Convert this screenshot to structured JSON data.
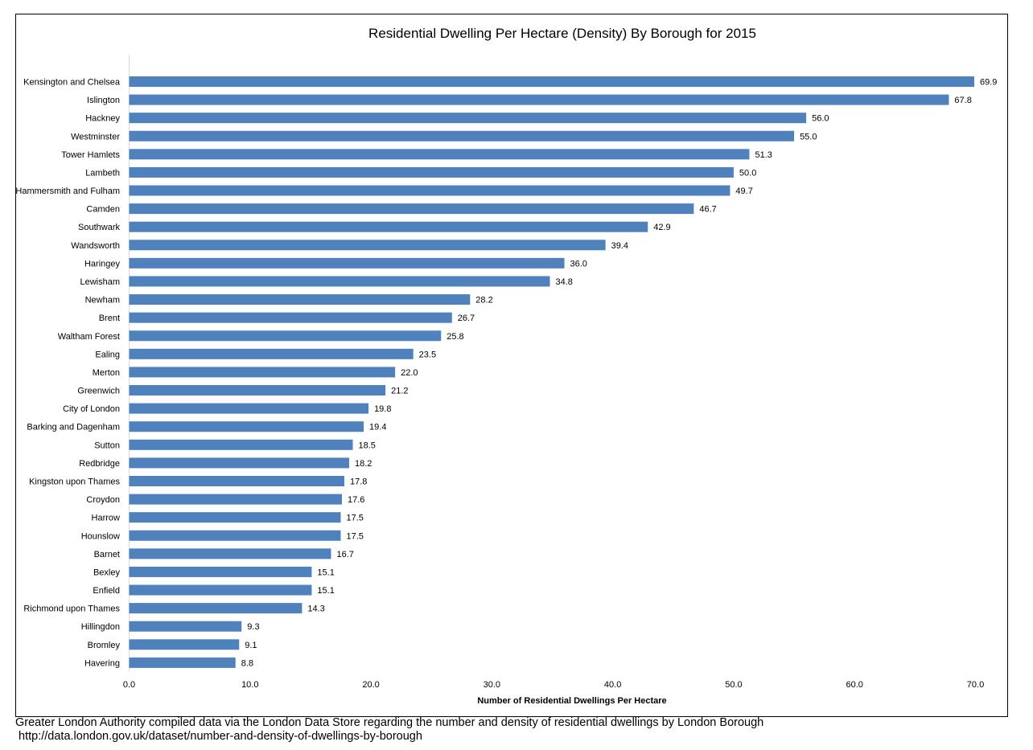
{
  "chart_data": {
    "type": "bar",
    "orientation": "horizontal",
    "title": "Residential Dwelling Per Hectare (Density) By Borough for 2015",
    "xlabel": "Number of Residential Dwellings Per Hectare",
    "ylabel": "",
    "xlim": [
      0,
      70
    ],
    "x_ticks": [
      "0.0",
      "10.0",
      "20.0",
      "30.0",
      "40.0",
      "50.0",
      "60.0",
      "70.0"
    ],
    "grid": false,
    "legend": "none",
    "bar_color": "#4f81bd",
    "categories": [
      "Kensington and Chelsea",
      "Islington",
      "Hackney",
      "Westminster",
      "Tower Hamlets",
      "Lambeth",
      "Hammersmith and Fulham",
      "Camden",
      "Southwark",
      "Wandsworth",
      "Haringey",
      "Lewisham",
      "Newham",
      "Brent",
      "Waltham Forest",
      "Ealing",
      "Merton",
      "Greenwich",
      "City of London",
      "Barking and Dagenham",
      "Sutton",
      "Redbridge",
      "Kingston upon Thames",
      "Croydon",
      "Harrow",
      "Hounslow",
      "Barnet",
      "Bexley",
      "Enfield",
      "Richmond upon Thames",
      "Hillingdon",
      "Bromley",
      "Havering"
    ],
    "values": [
      69.9,
      67.8,
      56.0,
      55.0,
      51.3,
      50.0,
      49.7,
      46.7,
      42.9,
      39.4,
      36.0,
      34.8,
      28.2,
      26.7,
      25.8,
      23.5,
      22.0,
      21.2,
      19.8,
      19.4,
      18.5,
      18.2,
      17.8,
      17.6,
      17.5,
      17.5,
      16.7,
      15.1,
      15.1,
      14.3,
      9.3,
      9.1,
      8.8
    ],
    "value_labels": [
      "69.9",
      "67.8",
      "56.0",
      "55.0",
      "51.3",
      "50.0",
      "49.7",
      "46.7",
      "42.9",
      "39.4",
      "36.0",
      "34.8",
      "28.2",
      "26.7",
      "25.8",
      "23.5",
      "22.0",
      "21.2",
      "19.8",
      "19.4",
      "18.5",
      "18.2",
      "17.8",
      "17.6",
      "17.5",
      "17.5",
      "16.7",
      "15.1",
      "15.1",
      "14.3",
      "9.3",
      "9.1",
      "8.8"
    ]
  },
  "footer": {
    "line1": "Greater London Authority compiled data via the London Data Store regarding the number and density of residential dwellings by London Borough",
    "line2": " http://data.london.gov.uk/dataset/number-and-density-of-dwellings-by-borough"
  }
}
